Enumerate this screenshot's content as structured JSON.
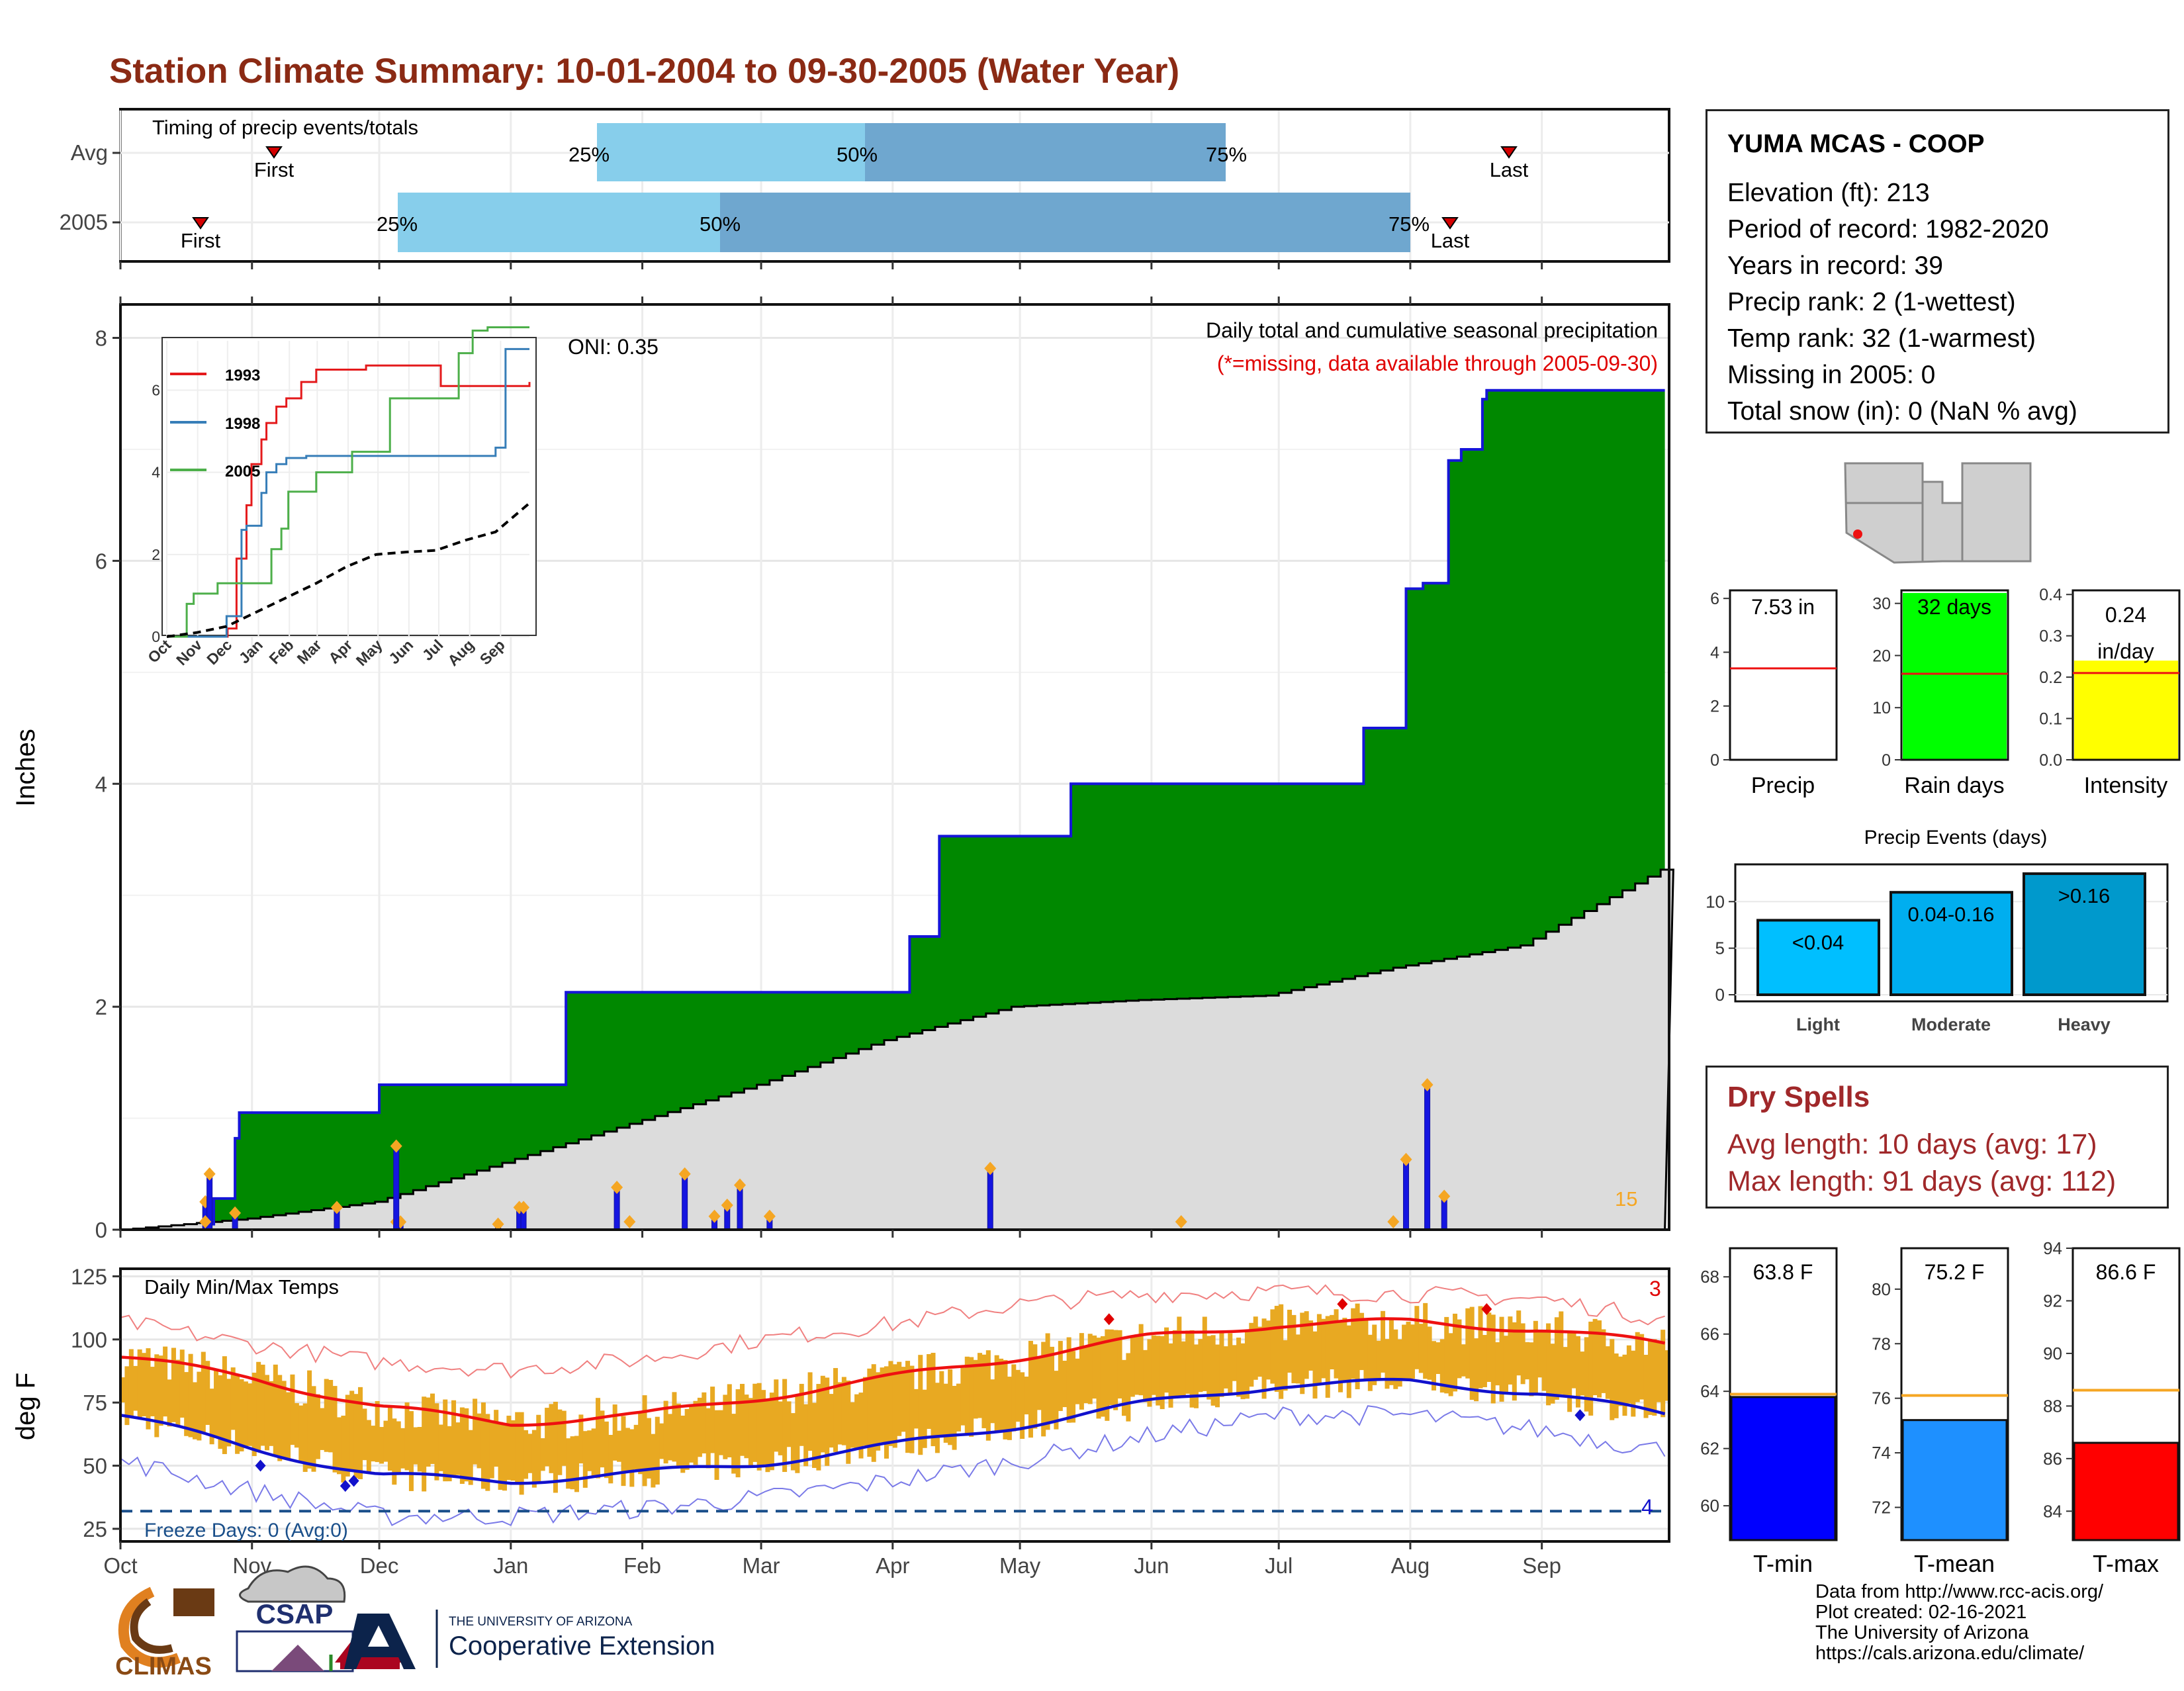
{
  "title": "Station Climate Summary: 10-01-2004 to 09-30-2005 (Water Year)",
  "timing": {
    "label": "Timing of precip events/totals",
    "row_labels": [
      "Avg",
      "2005"
    ],
    "avg": {
      "first": "First",
      "p25": "25%",
      "p50": "50%",
      "p75": "75%",
      "last": "Last"
    },
    "yr": {
      "first": "First",
      "p25": "25%",
      "p50": "50%",
      "p75": "75%",
      "last": "Last"
    }
  },
  "station": {
    "name": "YUMA MCAS - COOP",
    "lines": [
      "Elevation (ft): 213",
      "Period of record: 1982-2020",
      "Years in record: 39",
      "Precip rank: 2 (1-wettest)",
      "Temp rank: 32 (1-warmest)",
      "Missing in 2005: 0",
      "Total snow (in): 0 (NaN % avg)"
    ]
  },
  "main": {
    "title": "Daily total and cumulative seasonal precipitation",
    "subtitle": "(*=missing, data available through 2005-09-30)",
    "ylabel": "Inches",
    "oni": "ONI: 0.35",
    "count_label": "15"
  },
  "inset": {
    "legend": [
      "1993",
      "1998",
      "2005"
    ],
    "y_ticks": [
      "0",
      "2",
      "4",
      "6"
    ],
    "x_ticks": [
      "Oct",
      "Nov",
      "Dec",
      "Jan",
      "Feb",
      "Mar",
      "Apr",
      "May",
      "Jun",
      "Jul",
      "Aug",
      "Sep"
    ]
  },
  "summary_bars": {
    "precip": {
      "value_label": "7.53 in",
      "axis_label": "Precip",
      "ticks": [
        "0",
        "2",
        "4",
        "6"
      ]
    },
    "raindays": {
      "value_label": "32 days",
      "axis_label": "Rain days",
      "ticks": [
        "0",
        "10",
        "20",
        "30"
      ]
    },
    "intensity": {
      "value_label_1": "0.24",
      "value_label_2": "in/day",
      "axis_label": "Intensity",
      "ticks": [
        "0.0",
        "0.1",
        "0.2",
        "0.3",
        "0.4"
      ]
    }
  },
  "events": {
    "title": "Precip Events (days)",
    "ticks": [
      "0",
      "5",
      "10"
    ],
    "bars": [
      {
        "cat": "Light",
        "label": "<0.04"
      },
      {
        "cat": "Moderate",
        "label": "0.04-0.16"
      },
      {
        "cat": "Heavy",
        "label": ">0.16"
      }
    ]
  },
  "dry": {
    "title": "Dry Spells",
    "avg": "Avg length: 10 days (avg: 17)",
    "max": "Max length: 91 days (avg: 112)"
  },
  "temp": {
    "title": "Daily Min/Max Temps",
    "ylabel": "deg F",
    "y_ticks": [
      "25",
      "50",
      "75",
      "100",
      "125"
    ],
    "months": [
      "Oct",
      "Nov",
      "Dec",
      "Jan",
      "Feb",
      "Mar",
      "Apr",
      "May",
      "Jun",
      "Jul",
      "Aug",
      "Sep"
    ],
    "freeze": "Freeze Days: 0 (Avg:0)",
    "count_hot": "3",
    "count_cold": "4"
  },
  "temp_bars": {
    "tmin": {
      "label": "63.8 F",
      "axis_label": "T-min",
      "ticks": [
        "60",
        "62",
        "64",
        "66",
        "68"
      ]
    },
    "tmean": {
      "label": "75.2 F",
      "axis_label": "T-mean",
      "ticks": [
        "72",
        "74",
        "76",
        "78",
        "80"
      ]
    },
    "tmax": {
      "label": "86.6 F",
      "axis_label": "T-max",
      "ticks": [
        "84",
        "86",
        "88",
        "90",
        "92",
        "94"
      ]
    }
  },
  "footer": {
    "lines": [
      "Data from http://www.rcc-acis.org/",
      "Plot created: 02-16-2021",
      "The University of Arizona",
      "https://cals.arizona.edu/climate/"
    ],
    "logo_climas": "CLIMAS",
    "logo_csap": "CSAP",
    "ua_small": "THE UNIVERSITY OF ARIZONA",
    "ua_big": "Cooperative Extension"
  },
  "colors": {
    "title": "#8b2a14",
    "cum_fill": "#008800",
    "cum_line": "#1515d8",
    "avg_fill": "#dcdcdc",
    "daily_bar": "#1515e0",
    "marker": "#f5a623",
    "temp_band": "#e8a922",
    "avg_max": "#ee1111",
    "avg_min": "#1111cc",
    "pct_light": "#87ceeb",
    "pct_dark": "#6fa7cf"
  },
  "chart_data": [
    {
      "type": "area",
      "name": "cumulative",
      "title": "Daily total and cumulative seasonal precipitation",
      "ylabel": "Inches",
      "ylim": [
        0,
        8.3
      ],
      "x_unit": "day of water year",
      "series": [
        {
          "name": "2005 cumulative",
          "x": [
            0,
            20,
            21,
            22,
            27,
            28,
            51,
            54,
            61,
            67,
            81,
            100,
            105,
            115,
            122,
            130,
            147,
            149,
            153,
            159,
            170,
            185,
            186,
            193,
            224,
            293,
            296,
            303,
            307,
            313,
            316,
            321,
            322,
            333,
            337,
            364
          ],
          "y": [
            0,
            0.02,
            0.05,
            0.28,
            0.82,
            1.05,
            1.05,
            1.05,
            1.3,
            1.3,
            1.3,
            1.3,
            2.13,
            2.13,
            2.13,
            2.13,
            2.13,
            2.13,
            2.13,
            2.13,
            2.13,
            2.13,
            2.63,
            3.53,
            4.0,
            4.5,
            4.5,
            5.75,
            5.8,
            6.9,
            7.0,
            7.45,
            7.53,
            7.53,
            7.53,
            7.53
          ]
        },
        {
          "name": "average cumulative",
          "x": [
            0,
            30,
            60,
            90,
            120,
            150,
            180,
            210,
            240,
            270,
            300,
            330,
            364
          ],
          "y": [
            0,
            0.1,
            0.25,
            0.6,
            0.95,
            1.3,
            1.7,
            2.0,
            2.06,
            2.1,
            2.35,
            2.55,
            3.25
          ]
        }
      ],
      "daily": [
        {
          "x": 20,
          "y": 0.25
        },
        {
          "x": 21,
          "y": 0.5
        },
        {
          "x": 27,
          "y": 0.15
        },
        {
          "x": 51,
          "y": 0.2
        },
        {
          "x": 65,
          "y": 0.07
        },
        {
          "x": 66,
          "y": 0.07
        },
        {
          "x": 65,
          "y": 0.75
        },
        {
          "x": 89,
          "y": 0.05
        },
        {
          "x": 94,
          "y": 0.2
        },
        {
          "x": 95,
          "y": 0.2
        },
        {
          "x": 117,
          "y": 0.38
        },
        {
          "x": 133,
          "y": 0.5
        },
        {
          "x": 140,
          "y": 0.12
        },
        {
          "x": 143,
          "y": 0.22
        },
        {
          "x": 146,
          "y": 0.4
        },
        {
          "x": 153,
          "y": 0.12
        },
        {
          "x": 205,
          "y": 0.55
        },
        {
          "x": 303,
          "y": 0.63
        },
        {
          "x": 308,
          "y": 1.3
        },
        {
          "x": 312,
          "y": 0.3
        }
      ]
    },
    {
      "type": "line",
      "name": "inset cumulative",
      "categories": [
        "Oct",
        "Nov",
        "Dec",
        "Jan",
        "Feb",
        "Mar",
        "Apr",
        "May",
        "Jun",
        "Jul",
        "Aug",
        "Sep"
      ],
      "ylim": [
        0,
        7.2
      ],
      "series": [
        {
          "name": "1993",
          "x": [
            0,
            60,
            61,
            70,
            80,
            85,
            95,
            100,
            110,
            120,
            135,
            150,
            200,
            270,
            275,
            364
          ],
          "y": [
            0,
            0,
            0.2,
            1.9,
            3.2,
            4.2,
            4.8,
            5.2,
            5.6,
            5.8,
            6.2,
            6.5,
            6.6,
            6.6,
            6.1,
            6.2
          ]
        },
        {
          "name": "1998",
          "x": [
            0,
            55,
            60,
            75,
            80,
            95,
            100,
            110,
            120,
            140,
            180,
            270,
            330,
            340,
            364
          ],
          "y": [
            0,
            0,
            0.5,
            2.6,
            2.7,
            3.5,
            4.0,
            4.2,
            4.35,
            4.4,
            4.4,
            4.4,
            4.6,
            7.0,
            7.0
          ]
        },
        {
          "name": "2005",
          "x": [
            0,
            20,
            27,
            51,
            65,
            105,
            115,
            122,
            150,
            186,
            193,
            224,
            293,
            307,
            322,
            364
          ],
          "y": [
            0,
            0.8,
            1.05,
            1.3,
            1.3,
            2.13,
            2.63,
            3.53,
            4.0,
            4.5,
            4.5,
            5.8,
            6.9,
            7.45,
            7.53,
            7.53
          ]
        },
        {
          "name": "average",
          "x": [
            0,
            30,
            60,
            90,
            120,
            150,
            180,
            210,
            240,
            270,
            300,
            330,
            364
          ],
          "y": [
            0,
            0.1,
            0.25,
            0.6,
            0.95,
            1.3,
            1.7,
            2.0,
            2.06,
            2.1,
            2.35,
            2.55,
            3.25
          ]
        }
      ]
    },
    {
      "type": "line",
      "name": "daily temps",
      "title": "Daily Min/Max Temps",
      "ylabel": "deg F",
      "ylim": [
        20,
        128
      ],
      "x": [
        0,
        31,
        61,
        92,
        123,
        151,
        182,
        212,
        243,
        273,
        304,
        335,
        364
      ],
      "series": [
        {
          "name": "avg max",
          "y": [
            93,
            85,
            73,
            67,
            70,
            77,
            85,
            93,
            101,
            106,
            107,
            104,
            98
          ]
        },
        {
          "name": "avg min",
          "y": [
            70,
            57,
            46,
            44,
            47,
            51,
            58,
            66,
            75,
            82,
            83,
            79,
            70
          ]
        },
        {
          "name": "record max",
          "y": [
            107,
            98,
            91,
            88,
            92,
            100,
            106,
            114,
            118,
            119,
            118,
            116,
            108
          ]
        },
        {
          "name": "record min",
          "y": [
            52,
            40,
            30,
            30,
            33,
            37,
            44,
            52,
            62,
            70,
            70,
            64,
            56
          ]
        },
        {
          "name": "freeze",
          "y": [
            32,
            32,
            32,
            32,
            32,
            32,
            32,
            32,
            32,
            32,
            32,
            32,
            32
          ]
        }
      ]
    },
    {
      "type": "bar",
      "name": "season summary",
      "categories": [
        "Precip",
        "Rain days",
        "Intensity"
      ],
      "values": [
        7.53,
        32,
        0.24
      ],
      "averages": [
        3.4,
        16.5,
        0.21
      ]
    },
    {
      "type": "bar",
      "name": "Precip Events (days)",
      "categories": [
        "Light",
        "Moderate",
        "Heavy"
      ],
      "values": [
        8,
        11,
        13
      ],
      "ylim": [
        0,
        14
      ]
    },
    {
      "type": "bar",
      "name": "temperature summary",
      "categories": [
        "T-min",
        "T-mean",
        "T-max"
      ],
      "values": [
        63.8,
        75.2,
        86.6
      ],
      "averages": [
        63.9,
        76.1,
        88.6
      ]
    }
  ]
}
